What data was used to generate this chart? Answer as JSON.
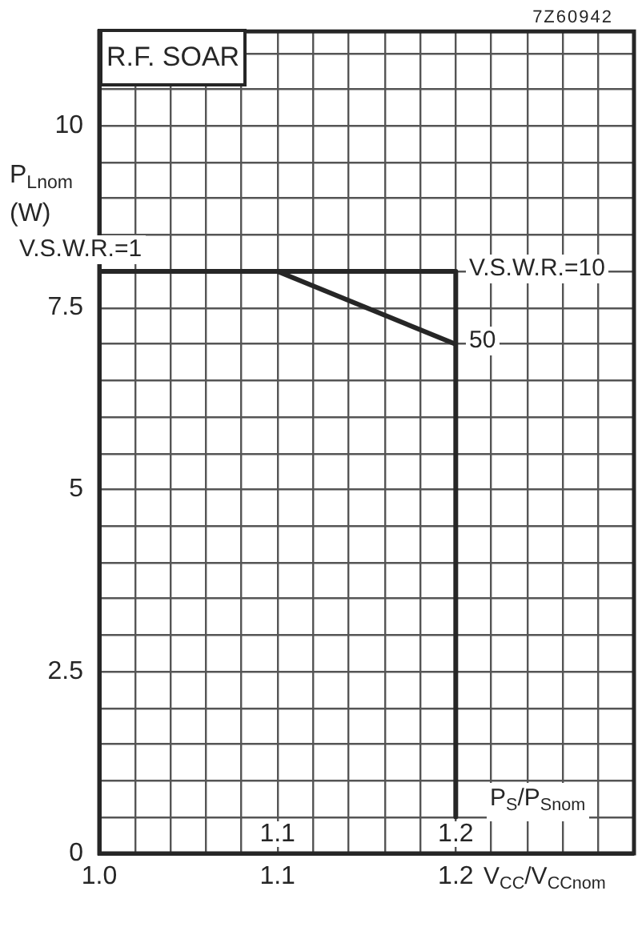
{
  "chart_data": {
    "type": "line",
    "title": "R.F. SOAR",
    "xlabel": "V$_{CC}$/V$_{CCnom}$",
    "x2label": "P$_{S}$/P$_{Snom}$",
    "ylabel": "P$_{Lnom}$ (W)",
    "xlim": [
      1.0,
      1.3
    ],
    "xticks": [
      {
        "value": 1,
        "label": "1.0"
      },
      {
        "value": 1.02,
        "label": null
      },
      {
        "value": 1.04,
        "label": null
      },
      {
        "value": 1.06,
        "label": null
      },
      {
        "value": 1.08,
        "label": null
      },
      1.1,
      {
        "value": 1.12,
        "label": null
      },
      {
        "value": 1.14,
        "label": null
      },
      {
        "value": 1.16,
        "label": null
      },
      {
        "value": 1.18,
        "label": null
      },
      1.2,
      {
        "value": 1.22,
        "label": null
      },
      {
        "value": 1.24,
        "label": null
      },
      {
        "value": 1.26,
        "label": null
      },
      {
        "value": 1.28,
        "label": null
      },
      {
        "value": 1.3,
        "label": null
      }
    ],
    "x2lim": [
      1.0,
      1.3
    ],
    "x2ticks": [
      1.1,
      1.2
    ],
    "ylim": [
      0,
      11.3
    ],
    "yticks": [
      0,
      {
        "value": 0.5,
        "label": null
      },
      {
        "value": 1,
        "label": null
      },
      {
        "value": 1.5,
        "label": null
      },
      {
        "value": 2,
        "label": null
      },
      2.5,
      {
        "value": 3,
        "label": null
      },
      {
        "value": 3.5,
        "label": null
      },
      {
        "value": 4,
        "label": null
      },
      {
        "value": 4.5,
        "label": null
      },
      5,
      {
        "value": 5.5,
        "label": null
      },
      {
        "value": 6,
        "label": null
      },
      {
        "value": 6.5,
        "label": null
      },
      {
        "value": 7,
        "label": null
      },
      7.5,
      {
        "value": 8,
        "label": null
      },
      {
        "value": 8.5,
        "label": null
      },
      {
        "value": 9,
        "label": null
      },
      {
        "value": 9.5,
        "label": null
      },
      10,
      {
        "value": 10.5,
        "label": null
      },
      {
        "value": 11,
        "label": null
      }
    ],
    "grid": true,
    "series": [
      {
        "color": "#262626",
        "x": [
          1.0,
          1.2,
          1.2
        ],
        "values": [
          8,
          8,
          0.5
        ]
      },
      {
        "color": "#262626",
        "x": [
          1.1,
          1.2
        ],
        "values": [
          8,
          7
        ]
      }
    ],
    "annotations": [
      "7Z60942",
      "V.S.W.R.=1",
      "V.S.W.R.=10",
      "50"
    ]
  }
}
